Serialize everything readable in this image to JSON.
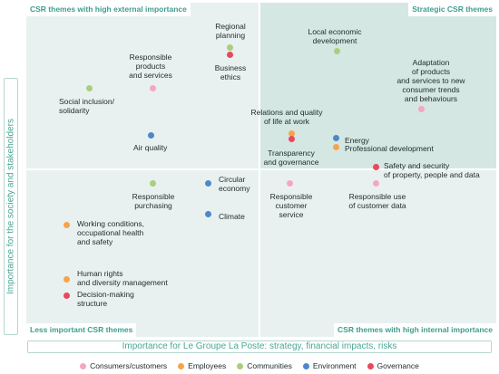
{
  "colors": {
    "consumers": "#f4a6c3",
    "employees": "#f7a349",
    "communities": "#a9cf7d",
    "environment": "#4e88c9",
    "governance": "#e9485d"
  },
  "axes": {
    "y_label": "Importance for the society and stakeholders",
    "x_label": "Importance for Le Groupe La Poste: strategy, financial impacts, risks"
  },
  "quadrants": {
    "top_left": "CSR themes with high external importance",
    "top_right": "Strategic CSR themes",
    "bottom_left": "Less important CSR themes",
    "bottom_right": "CSR themes with high internal importance"
  },
  "legend": [
    {
      "label": "Consumers/customers",
      "category": "consumers"
    },
    {
      "label": "Employees",
      "category": "employees"
    },
    {
      "label": "Communities",
      "category": "communities"
    },
    {
      "label": "Environment",
      "category": "environment"
    },
    {
      "label": "Governance",
      "category": "governance"
    }
  ],
  "themes": {
    "regional_planning": "Regional\nplanning",
    "business_ethics": "Business\nethics",
    "local_economic": "Local economic\ndevelopment",
    "responsible_products": "Responsible\nproducts\nand services",
    "adaptation": "Adaptation\nof products\nand services to new\nconsumer trends\nand behaviours",
    "social_inclusion": "Social inclusion/\nsolidarity",
    "relations_quality": "Relations and quality\nof life at work",
    "energy": "Energy",
    "professional_dev": "Professional development",
    "air_quality": "Air quality",
    "transparency": "Transparency\nand governance",
    "safety_security": "Safety and security\nof property, people and data",
    "circular_economy": "Circular\neconomy",
    "responsible_purchasing": "Responsible\npurchasing",
    "responsible_customer": "Responsible\ncustomer\nservice",
    "responsible_data": "Responsible use\nof customer data",
    "climate": "Climate",
    "working_conditions": "Working conditions,\noccupational health\nand safety",
    "human_rights": "Human rights\nand diversity management",
    "decision_making": "Decision-making\nstructure"
  }
}
